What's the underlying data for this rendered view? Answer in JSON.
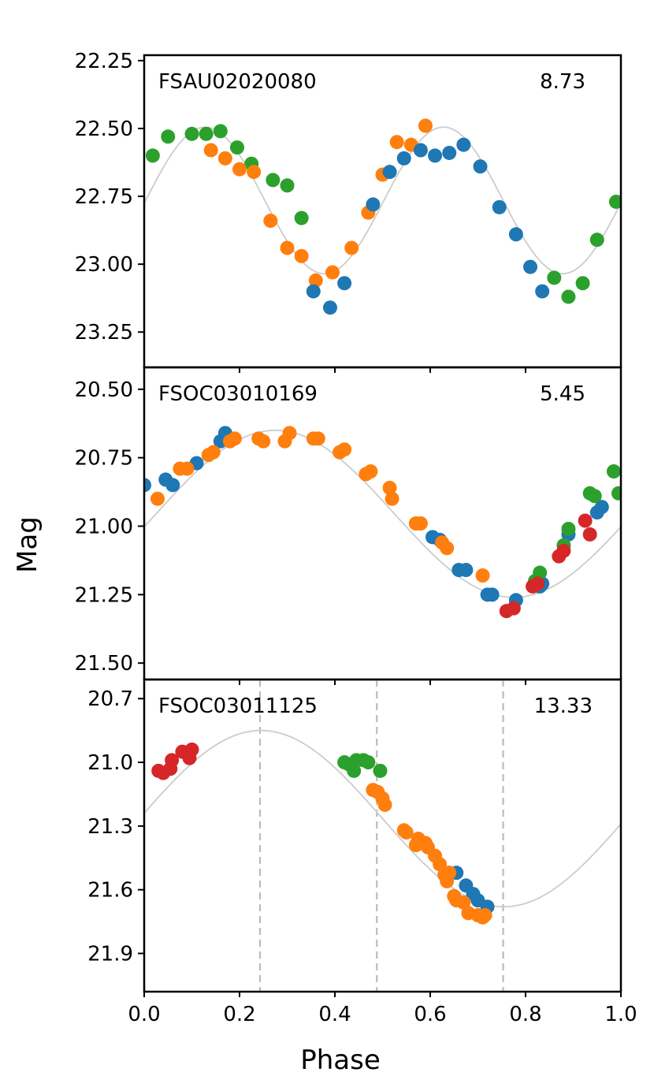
{
  "figure": {
    "xlabel": "Phase",
    "ylabel": "Mag",
    "colors": {
      "blue": "#1f77b4",
      "orange": "#ff7f0e",
      "green": "#2ca02c",
      "red": "#d62728",
      "model": "#cccccc",
      "frame": "#000000",
      "vline": "#bbbbbb"
    }
  },
  "chart_data": [
    {
      "type": "scatter",
      "panel": "top",
      "name": "FSAU02020080",
      "value": "8.73",
      "xlim": [
        0.0,
        1.0
      ],
      "ylim": [
        23.38,
        22.23
      ],
      "yticks": [
        22.25,
        22.5,
        22.75,
        23.0,
        23.25
      ],
      "ytick_labels": [
        "22.25",
        "22.50",
        "22.75",
        "23.00",
        "23.25"
      ],
      "xticks": [
        0.0,
        0.2,
        0.4,
        0.6,
        0.8,
        1.0
      ],
      "xtick_labels": [],
      "vlines": [],
      "model": {
        "mean": 22.765,
        "amp": 0.27,
        "period": 0.5,
        "phase0": 0.128
      },
      "series": [
        {
          "name": "green",
          "color": "green",
          "points": [
            [
              0.018,
              22.6
            ],
            [
              0.05,
              22.53
            ],
            [
              0.1,
              22.52
            ],
            [
              0.13,
              22.52
            ],
            [
              0.16,
              22.51
            ],
            [
              0.195,
              22.57
            ],
            [
              0.225,
              22.63
            ],
            [
              0.27,
              22.69
            ],
            [
              0.3,
              22.71
            ],
            [
              0.33,
              22.83
            ],
            [
              0.86,
              23.05
            ],
            [
              0.89,
              23.12
            ],
            [
              0.92,
              23.07
            ],
            [
              0.95,
              22.91
            ],
            [
              0.99,
              22.77
            ]
          ]
        },
        {
          "name": "orange",
          "color": "orange",
          "points": [
            [
              0.14,
              22.58
            ],
            [
              0.17,
              22.61
            ],
            [
              0.2,
              22.65
            ],
            [
              0.23,
              22.66
            ],
            [
              0.265,
              22.84
            ],
            [
              0.3,
              22.94
            ],
            [
              0.33,
              22.97
            ],
            [
              0.36,
              23.06
            ],
            [
              0.395,
              23.03
            ],
            [
              0.435,
              22.94
            ],
            [
              0.47,
              22.81
            ],
            [
              0.5,
              22.67
            ],
            [
              0.53,
              22.55
            ],
            [
              0.56,
              22.56
            ],
            [
              0.59,
              22.49
            ]
          ]
        },
        {
          "name": "blue",
          "color": "blue",
          "points": [
            [
              0.355,
              23.1
            ],
            [
              0.39,
              23.16
            ],
            [
              0.42,
              23.07
            ],
            [
              0.48,
              22.78
            ],
            [
              0.515,
              22.66
            ],
            [
              0.545,
              22.61
            ],
            [
              0.58,
              22.58
            ],
            [
              0.61,
              22.6
            ],
            [
              0.64,
              22.59
            ],
            [
              0.67,
              22.56
            ],
            [
              0.705,
              22.64
            ],
            [
              0.745,
              22.79
            ],
            [
              0.78,
              22.89
            ],
            [
              0.81,
              23.01
            ],
            [
              0.835,
              23.1
            ]
          ]
        }
      ]
    },
    {
      "type": "scatter",
      "panel": "middle",
      "name": "FSOC03010169",
      "value": "5.45",
      "xlim": [
        0.0,
        1.0
      ],
      "ylim": [
        21.56,
        20.42
      ],
      "yticks": [
        20.5,
        20.75,
        21.0,
        21.25,
        21.5
      ],
      "ytick_labels": [
        "20.50",
        "20.75",
        "21.00",
        "21.25",
        "21.50"
      ],
      "xticks": [
        0.0,
        0.2,
        0.4,
        0.6,
        0.8,
        1.0
      ],
      "xtick_labels": [],
      "vlines": [],
      "model": {
        "mean": 20.955,
        "amp": 0.305,
        "period": 1.0,
        "phase0": 0.275
      },
      "series": [
        {
          "name": "blue",
          "color": "blue",
          "points": [
            [
              0.0,
              20.85
            ],
            [
              0.045,
              20.83
            ],
            [
              0.06,
              20.85
            ],
            [
              0.11,
              20.77
            ],
            [
              0.16,
              20.69
            ],
            [
              0.17,
              20.66
            ],
            [
              0.605,
              21.04
            ],
            [
              0.62,
              21.05
            ],
            [
              0.66,
              21.16
            ],
            [
              0.675,
              21.16
            ],
            [
              0.72,
              21.25
            ],
            [
              0.73,
              21.25
            ],
            [
              0.78,
              21.27
            ],
            [
              0.83,
              21.22
            ],
            [
              0.835,
              21.21
            ],
            [
              0.89,
              21.03
            ],
            [
              0.95,
              20.95
            ],
            [
              0.96,
              20.93
            ]
          ]
        },
        {
          "name": "orange",
          "color": "orange",
          "points": [
            [
              0.028,
              20.9
            ],
            [
              0.075,
              20.79
            ],
            [
              0.09,
              20.79
            ],
            [
              0.135,
              20.74
            ],
            [
              0.145,
              20.73
            ],
            [
              0.18,
              20.69
            ],
            [
              0.19,
              20.68
            ],
            [
              0.24,
              20.68
            ],
            [
              0.25,
              20.69
            ],
            [
              0.295,
              20.69
            ],
            [
              0.305,
              20.66
            ],
            [
              0.355,
              20.68
            ],
            [
              0.365,
              20.68
            ],
            [
              0.41,
              20.73
            ],
            [
              0.42,
              20.72
            ],
            [
              0.465,
              20.81
            ],
            [
              0.475,
              20.8
            ],
            [
              0.515,
              20.86
            ],
            [
              0.52,
              20.9
            ],
            [
              0.57,
              20.99
            ],
            [
              0.58,
              20.99
            ],
            [
              0.625,
              21.06
            ],
            [
              0.635,
              21.08
            ],
            [
              0.71,
              21.18
            ]
          ]
        },
        {
          "name": "green",
          "color": "green",
          "points": [
            [
              0.82,
              21.2
            ],
            [
              0.83,
              21.17
            ],
            [
              0.88,
              21.07
            ],
            [
              0.89,
              21.01
            ],
            [
              0.935,
              20.88
            ],
            [
              0.945,
              20.89
            ],
            [
              0.985,
              20.8
            ],
            [
              0.995,
              20.88
            ]
          ]
        },
        {
          "name": "red",
          "color": "red",
          "points": [
            [
              0.76,
              21.31
            ],
            [
              0.775,
              21.3
            ],
            [
              0.815,
              21.22
            ],
            [
              0.825,
              21.21
            ],
            [
              0.87,
              21.11
            ],
            [
              0.88,
              21.09
            ],
            [
              0.925,
              20.98
            ],
            [
              0.935,
              21.03
            ]
          ]
        }
      ]
    },
    {
      "type": "scatter",
      "panel": "bottom",
      "name": "FSOC03011125",
      "value": "13.33",
      "xlim": [
        0.0,
        1.0
      ],
      "ylim": [
        22.08,
        20.61
      ],
      "yticks": [
        20.7,
        21.0,
        21.3,
        21.6,
        21.9
      ],
      "ytick_labels": [
        "20.7",
        "21.0",
        "21.3",
        "21.6",
        "21.9"
      ],
      "xticks": [
        0.0,
        0.2,
        0.4,
        0.6,
        0.8,
        1.0
      ],
      "xtick_labels": [
        "0.0",
        "0.2",
        "0.4",
        "0.6",
        "0.8",
        "1.0"
      ],
      "vlines": [
        0.243,
        0.488,
        0.753
      ],
      "model": {
        "mean": 21.265,
        "amp": 0.415,
        "period": 1.02,
        "phase0": 0.245
      },
      "series": [
        {
          "name": "red",
          "color": "red",
          "points": [
            [
              0.03,
              21.04
            ],
            [
              0.04,
              21.05
            ],
            [
              0.055,
              21.03
            ],
            [
              0.058,
              20.99
            ],
            [
              0.08,
              20.95
            ],
            [
              0.095,
              20.98
            ],
            [
              0.1,
              20.94
            ]
          ]
        },
        {
          "name": "green",
          "color": "green",
          "points": [
            [
              0.42,
              21.0
            ],
            [
              0.43,
              21.01
            ],
            [
              0.44,
              21.04
            ],
            [
              0.445,
              20.99
            ],
            [
              0.46,
              20.99
            ],
            [
              0.47,
              21.0
            ],
            [
              0.495,
              21.04
            ]
          ]
        },
        {
          "name": "blue",
          "color": "blue",
          "points": [
            [
              0.655,
              21.52
            ],
            [
              0.675,
              21.58
            ],
            [
              0.69,
              21.62
            ],
            [
              0.7,
              21.65
            ],
            [
              0.72,
              21.68
            ]
          ]
        },
        {
          "name": "orange",
          "color": "orange",
          "points": [
            [
              0.48,
              21.13
            ],
            [
              0.49,
              21.14
            ],
            [
              0.5,
              21.17
            ],
            [
              0.505,
              21.2
            ],
            [
              0.545,
              21.32
            ],
            [
              0.55,
              21.33
            ],
            [
              0.57,
              21.39
            ],
            [
              0.575,
              21.36
            ],
            [
              0.59,
              21.38
            ],
            [
              0.595,
              21.4
            ],
            [
              0.61,
              21.44
            ],
            [
              0.62,
              21.48
            ],
            [
              0.63,
              21.53
            ],
            [
              0.635,
              21.56
            ],
            [
              0.64,
              21.52
            ],
            [
              0.65,
              21.63
            ],
            [
              0.655,
              21.65
            ],
            [
              0.67,
              21.66
            ],
            [
              0.68,
              21.71
            ],
            [
              0.7,
              21.72
            ],
            [
              0.71,
              21.73
            ],
            [
              0.715,
              21.72
            ]
          ]
        }
      ]
    }
  ]
}
